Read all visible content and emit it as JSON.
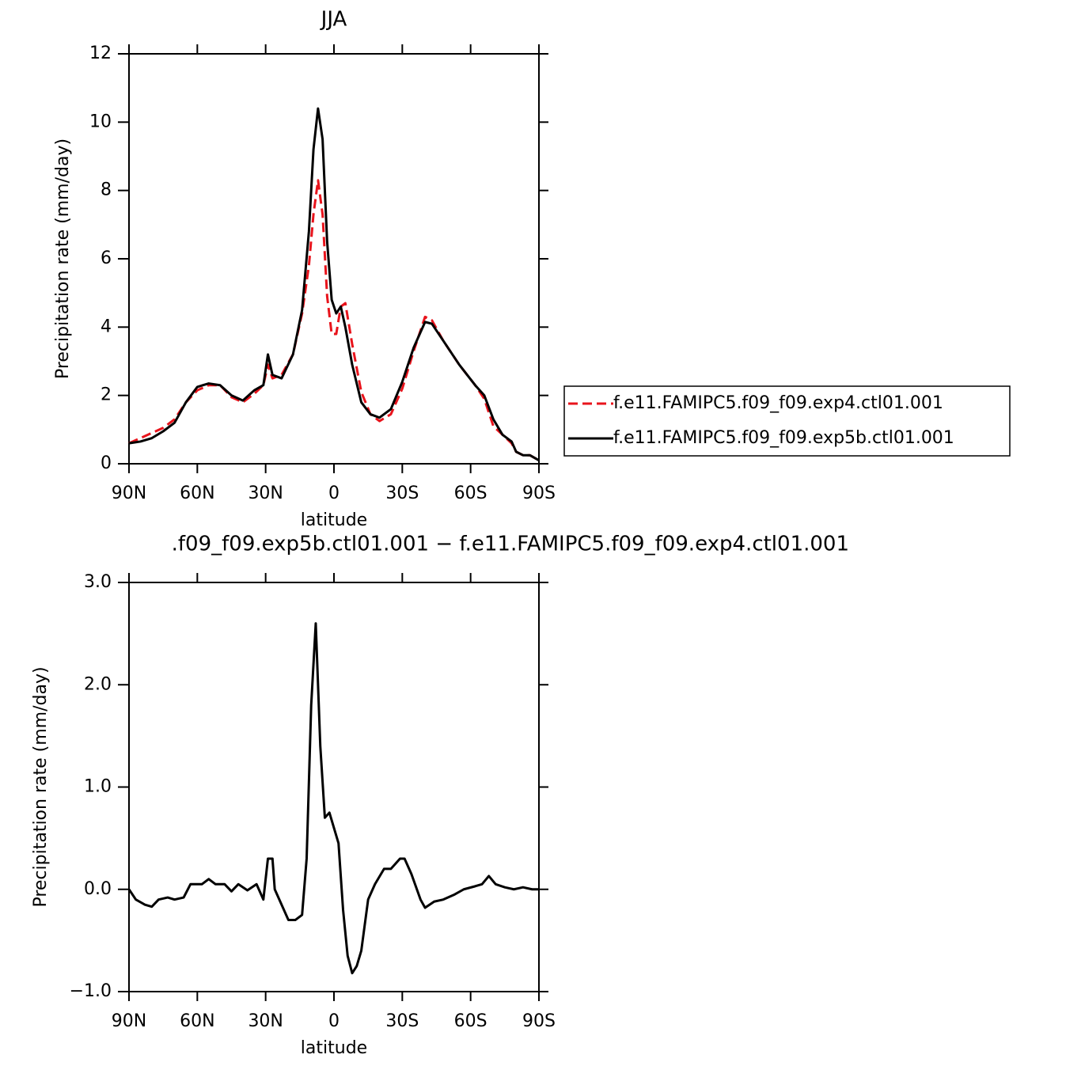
{
  "chart_data": [
    {
      "type": "line",
      "title": "JJA",
      "xlabel": "latitude",
      "ylabel": "Precipitation rate (mm/day)",
      "x": [
        90,
        85,
        80,
        75,
        70,
        65,
        60,
        55,
        50,
        45,
        40,
        35,
        31,
        29,
        27,
        23,
        18,
        14,
        11,
        9,
        7,
        5,
        3,
        1,
        -1,
        -3,
        -5,
        -8,
        -12,
        -16,
        -20,
        -25,
        -30,
        -35,
        -40,
        -43,
        -48,
        -55,
        -62,
        -66,
        -70,
        -74,
        -78,
        -80,
        -83,
        -86,
        -90
      ],
      "series": [
        {
          "name": "f.e11.FAMIPC5.f09_f09.exp4.ctl01.001",
          "color": "#e8141c",
          "dashed": true,
          "values": [
            0.6,
            0.75,
            0.9,
            1.05,
            1.3,
            1.8,
            2.15,
            2.3,
            2.3,
            1.95,
            1.8,
            2.05,
            2.3,
            2.9,
            2.5,
            2.6,
            3.2,
            4.4,
            5.8,
            7.3,
            8.3,
            7.3,
            4.9,
            3.8,
            3.8,
            4.6,
            4.7,
            3.5,
            2.1,
            1.45,
            1.25,
            1.45,
            2.2,
            3.3,
            4.3,
            4.2,
            3.6,
            2.9,
            2.3,
            1.9,
            1.1,
            0.85,
            0.6,
            0.35,
            0.25,
            0.25,
            0.1
          ]
        },
        {
          "name": "f.e11.FAMIPC5.f09_f09.exp5b.ctl01.001",
          "color": "#000000",
          "dashed": false,
          "values": [
            0.6,
            0.65,
            0.75,
            0.95,
            1.2,
            1.8,
            2.25,
            2.35,
            2.3,
            2.0,
            1.85,
            2.15,
            2.3,
            3.2,
            2.6,
            2.5,
            3.2,
            4.5,
            6.8,
            9.2,
            10.4,
            9.5,
            6.5,
            4.8,
            4.4,
            4.6,
            4.0,
            2.9,
            1.8,
            1.45,
            1.35,
            1.6,
            2.4,
            3.4,
            4.15,
            4.1,
            3.6,
            2.9,
            2.3,
            2.0,
            1.3,
            0.85,
            0.65,
            0.35,
            0.25,
            0.25,
            0.1
          ]
        }
      ],
      "xlim": [
        90,
        -90
      ],
      "xticks": [
        {
          "value": 90,
          "label": "90N"
        },
        {
          "value": 60,
          "label": "60N"
        },
        {
          "value": 30,
          "label": "30N"
        },
        0,
        {
          "value": -30,
          "label": "30S"
        },
        {
          "value": -60,
          "label": "60S"
        },
        {
          "value": -90,
          "label": "90S"
        }
      ],
      "ylim": [
        0,
        12
      ],
      "yticks": [
        0,
        2,
        4,
        6,
        8,
        10,
        12
      ],
      "legend": "right"
    },
    {
      "type": "line",
      "title": ".f09_f09.exp5b.ctl01.001 − f.e11.FAMIPC5.f09_f09.exp4.ctl01.001",
      "xlabel": "latitude",
      "ylabel": "Precipitation rate (mm/day)",
      "x": [
        90,
        87,
        83,
        80,
        77,
        73,
        70,
        66,
        63,
        58,
        55,
        52,
        48,
        45,
        42,
        38,
        34,
        31,
        29,
        27,
        26,
        23,
        20,
        17,
        14,
        12,
        10,
        8,
        6,
        4,
        2,
        0,
        -2,
        -4,
        -6,
        -8,
        -10,
        -12,
        -15,
        -18,
        -22,
        -25,
        -29,
        -31,
        -34,
        -38,
        -40,
        -44,
        -48,
        -53,
        -57,
        -62,
        -65,
        -68,
        -71,
        -75,
        -79,
        -83,
        -87,
        -90
      ],
      "series": [
        {
          "color": "#000000",
          "dashed": false,
          "values": [
            0,
            -0.1,
            -0.15,
            -0.17,
            -0.1,
            -0.08,
            -0.1,
            -0.08,
            0.05,
            0.05,
            0.1,
            0.05,
            0.05,
            -0.02,
            0.05,
            -0.01,
            0.05,
            -0.1,
            0.3,
            0.3,
            0,
            -0.15,
            -0.3,
            -0.3,
            -0.25,
            0.3,
            1.8,
            2.6,
            1.4,
            0.7,
            0.75,
            0.6,
            0.45,
            -0.2,
            -0.65,
            -0.82,
            -0.75,
            -0.6,
            -0.1,
            0.05,
            0.2,
            0.2,
            0.3,
            0.3,
            0.15,
            -0.1,
            -0.18,
            -0.12,
            -0.1,
            -0.05,
            0,
            0.03,
            0.05,
            0.13,
            0.05,
            0.02,
            0,
            0.02,
            0,
            0
          ]
        }
      ],
      "xlim": [
        90,
        -90
      ],
      "xticks": [
        {
          "value": 90,
          "label": "90N"
        },
        {
          "value": 60,
          "label": "60N"
        },
        {
          "value": 30,
          "label": "30N"
        },
        0,
        {
          "value": -30,
          "label": "30S"
        },
        {
          "value": -60,
          "label": "60S"
        },
        {
          "value": -90,
          "label": "90S"
        }
      ],
      "ylim": [
        -1,
        3
      ],
      "yticks": [
        {
          "value": -1,
          "label": "−1.0"
        },
        {
          "value": 0,
          "label": "0.0"
        },
        {
          "value": 1,
          "label": "1.0"
        },
        {
          "value": 2,
          "label": "2.0"
        },
        {
          "value": 3,
          "label": "3.0"
        }
      ]
    }
  ]
}
